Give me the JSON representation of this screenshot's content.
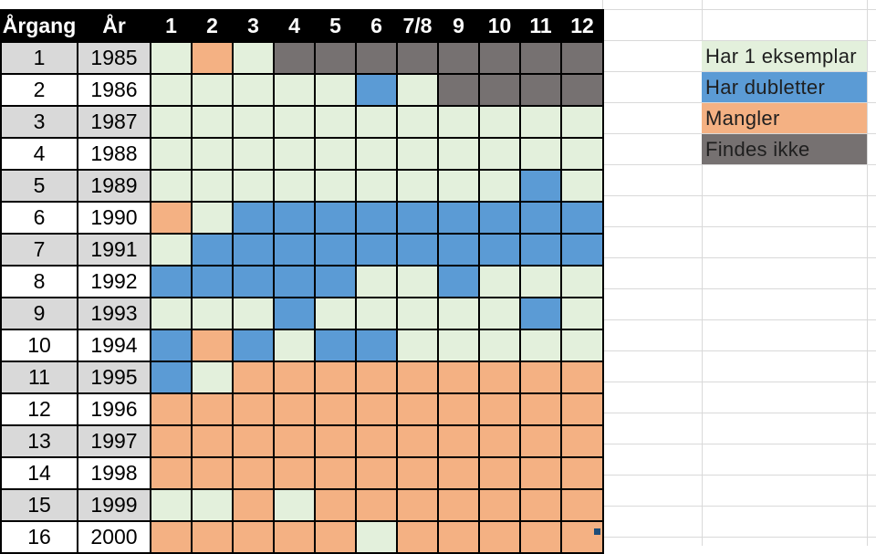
{
  "headers": [
    "Årgang",
    "År",
    "1",
    "2",
    "3",
    "4",
    "5",
    "6",
    "7/8",
    "9",
    "10",
    "11",
    "12"
  ],
  "status_colors": {
    "har_1_eksemplar": "#e3f0dc",
    "har_dubletter": "#5b9bd5",
    "mangler": "#f4b183",
    "findes_ikke": "#767171",
    "header_bg": "#000000",
    "row_label_gray": "#d9d9d9"
  },
  "rows": [
    {
      "argang": "1",
      "ar": "1985",
      "cells": [
        "1",
        "m",
        "1",
        "n",
        "n",
        "n",
        "n",
        "n",
        "n",
        "n",
        "n"
      ]
    },
    {
      "argang": "2",
      "ar": "1986",
      "cells": [
        "1",
        "1",
        "1",
        "1",
        "1",
        "d",
        "1",
        "n",
        "n",
        "n",
        "n"
      ]
    },
    {
      "argang": "3",
      "ar": "1987",
      "cells": [
        "1",
        "1",
        "1",
        "1",
        "1",
        "1",
        "1",
        "1",
        "1",
        "1",
        "1"
      ]
    },
    {
      "argang": "4",
      "ar": "1988",
      "cells": [
        "1",
        "1",
        "1",
        "1",
        "1",
        "1",
        "1",
        "1",
        "1",
        "1",
        "1"
      ]
    },
    {
      "argang": "5",
      "ar": "1989",
      "cells": [
        "1",
        "1",
        "1",
        "1",
        "1",
        "1",
        "1",
        "1",
        "1",
        "d",
        "1"
      ]
    },
    {
      "argang": "6",
      "ar": "1990",
      "cells": [
        "m",
        "1",
        "d",
        "d",
        "d",
        "d",
        "d",
        "d",
        "d",
        "d",
        "d"
      ]
    },
    {
      "argang": "7",
      "ar": "1991",
      "cells": [
        "1",
        "d",
        "d",
        "d",
        "d",
        "d",
        "d",
        "d",
        "d",
        "d",
        "d"
      ]
    },
    {
      "argang": "8",
      "ar": "1992",
      "cells": [
        "d",
        "d",
        "d",
        "d",
        "d",
        "1",
        "1",
        "d",
        "1",
        "1",
        "1"
      ]
    },
    {
      "argang": "9",
      "ar": "1993",
      "cells": [
        "1",
        "1",
        "1",
        "d",
        "1",
        "1",
        "1",
        "1",
        "1",
        "d",
        "1"
      ]
    },
    {
      "argang": "10",
      "ar": "1994",
      "cells": [
        "d",
        "m",
        "d",
        "1",
        "d",
        "d",
        "1",
        "1",
        "1",
        "1",
        "1"
      ]
    },
    {
      "argang": "11",
      "ar": "1995",
      "cells": [
        "d",
        "1",
        "m",
        "m",
        "m",
        "m",
        "m",
        "m",
        "m",
        "m",
        "m"
      ]
    },
    {
      "argang": "12",
      "ar": "1996",
      "cells": [
        "m",
        "m",
        "m",
        "m",
        "m",
        "m",
        "m",
        "m",
        "m",
        "m",
        "m"
      ]
    },
    {
      "argang": "13",
      "ar": "1997",
      "cells": [
        "m",
        "m",
        "m",
        "m",
        "m",
        "m",
        "m",
        "m",
        "m",
        "m",
        "m"
      ]
    },
    {
      "argang": "14",
      "ar": "1998",
      "cells": [
        "m",
        "m",
        "m",
        "m",
        "m",
        "m",
        "m",
        "m",
        "m",
        "m",
        "m"
      ]
    },
    {
      "argang": "15",
      "ar": "1999",
      "cells": [
        "1",
        "1",
        "m",
        "1",
        "m",
        "m",
        "m",
        "m",
        "m",
        "m",
        "m"
      ]
    },
    {
      "argang": "16",
      "ar": "2000",
      "cells": [
        "m",
        "m",
        "m",
        "m",
        "m",
        "1",
        "m",
        "m",
        "m",
        "m",
        "m"
      ]
    }
  ],
  "legend": [
    {
      "label": "Har 1 eksemplar",
      "color": "#e3f0dc"
    },
    {
      "label": "Har dubletter",
      "color": "#5b9bd5"
    },
    {
      "label": "Mangler",
      "color": "#f4b183"
    },
    {
      "label": "Findes ikke",
      "color": "#767171"
    }
  ]
}
